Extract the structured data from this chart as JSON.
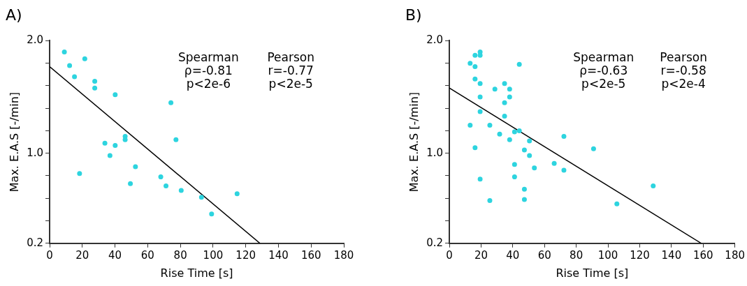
{
  "chart_data": [
    {
      "type": "scatter",
      "title": "A)",
      "xlabel": "Rise Time [s]",
      "ylabel": "Max. E.A.S [-/min]",
      "marker": "circle",
      "grid": false,
      "xlim": [
        0,
        180
      ],
      "xticks": [
        0,
        20,
        40,
        60,
        80,
        100,
        120,
        140,
        160,
        180
      ],
      "ylim": [
        0.2,
        2.0
      ],
      "yticks": [
        0.2,
        {
          "value": 0.4,
          "label": null
        },
        {
          "value": 0.6,
          "label": null
        },
        {
          "value": 0.8,
          "label": null
        },
        {
          "value": 1.0,
          "label": "1.0"
        },
        {
          "value": 1.2,
          "label": null
        },
        {
          "value": 1.4,
          "label": null
        },
        {
          "value": 1.6,
          "label": null
        },
        {
          "value": 1.8,
          "label": null
        },
        {
          "value": 2.0,
          "label": "2.0"
        }
      ],
      "annotations": [
        "Spearman\nρ=-0.81\np<2e-6",
        "Pearson\nr=-0.77\np<2e-5"
      ],
      "series": [
        {
          "color": "#2dd4df",
          "x": [
            9.0,
            12.2,
            21.5,
            15.2,
            27.6,
            27.6,
            40.1,
            74.2,
            77.3,
            46.2,
            46.2,
            33.8,
            40.1,
            36.9,
            52.5,
            18.3,
            68.0,
            49.4,
            71.2,
            80.5,
            92.9,
            114.7,
            99.1
          ],
          "values": [
            1.9,
            1.78,
            1.84,
            1.68,
            1.64,
            1.58,
            1.52,
            1.45,
            1.12,
            1.15,
            1.12,
            1.09,
            1.07,
            0.98,
            0.88,
            0.82,
            0.79,
            0.73,
            0.71,
            0.67,
            0.61,
            0.64,
            0.46
          ]
        },
        {
          "type": "line",
          "marker": "none",
          "color": "#000000",
          "x": [
            0,
            128.7
          ],
          "values": [
            1.77,
            0.2
          ]
        }
      ]
    },
    {
      "type": "scatter",
      "title": "B)",
      "xlabel": "Rise Time [s]",
      "ylabel": "Max. E.A.S [-/min]",
      "marker": "circle",
      "grid": false,
      "xlim": [
        0,
        180
      ],
      "xticks": [
        0,
        20,
        40,
        60,
        80,
        100,
        120,
        140,
        160,
        180
      ],
      "ylim": [
        0.2,
        2.0
      ],
      "yticks": [
        0.2,
        {
          "value": 0.4,
          "label": null
        },
        {
          "value": 0.6,
          "label": null
        },
        {
          "value": 0.8,
          "label": null
        },
        {
          "value": 1.0,
          "label": "1.0"
        },
        {
          "value": 1.2,
          "label": null
        },
        {
          "value": 1.4,
          "label": null
        },
        {
          "value": 1.6,
          "label": null
        },
        {
          "value": 1.8,
          "label": null
        },
        {
          "value": 2.0,
          "label": "2.0"
        }
      ],
      "annotations": [
        "Spearman\nρ=-0.63\np<2e-5",
        "Pearson\nr=-0.58\np<2e-4"
      ],
      "series": [
        {
          "color": "#2dd4df",
          "x": [
            19.4,
            19.4,
            16.2,
            13.1,
            16.2,
            44.1,
            16.2,
            19.4,
            34.8,
            28.7,
            38.0,
            38.0,
            19.4,
            34.8,
            19.4,
            34.8,
            13.1,
            25.5,
            31.7,
            38.0,
            41.1,
            44.1,
            50.5,
            47.3,
            50.5,
            16.2,
            41.1,
            41.1,
            53.6,
            66.1,
            72.2,
            72.2,
            90.9,
            19.4,
            47.3,
            47.3,
            25.5,
            105.6,
            128.5
          ],
          "values": [
            1.9,
            1.87,
            1.87,
            1.8,
            1.77,
            1.79,
            1.66,
            1.62,
            1.62,
            1.57,
            1.57,
            1.5,
            1.5,
            1.45,
            1.37,
            1.33,
            1.25,
            1.25,
            1.17,
            1.12,
            1.19,
            1.2,
            1.11,
            1.03,
            0.98,
            1.05,
            0.9,
            0.79,
            0.87,
            0.91,
            1.15,
            0.85,
            1.04,
            0.77,
            0.68,
            0.59,
            0.58,
            0.55,
            0.71
          ]
        },
        {
          "type": "line",
          "marker": "none",
          "color": "#000000",
          "x": [
            0,
            158.8
          ],
          "values": [
            1.58,
            0.2
          ]
        }
      ]
    }
  ]
}
